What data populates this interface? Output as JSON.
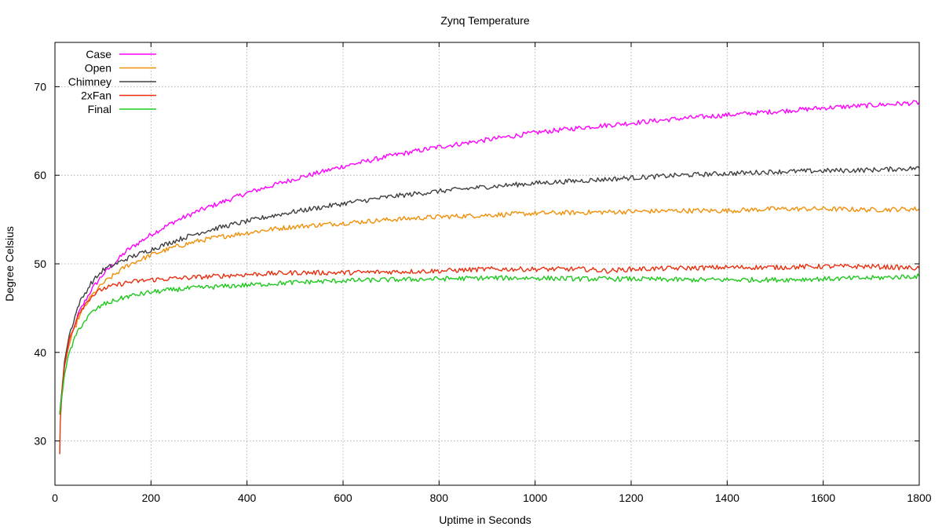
{
  "chart_data": {
    "type": "line",
    "title": "Zynq Temperature",
    "xlabel": "Uptime in Seconds",
    "ylabel": "Degree Celsius",
    "xlim": [
      0,
      1800
    ],
    "ylim": [
      25,
      75
    ],
    "xticks": [
      0,
      200,
      400,
      600,
      800,
      1000,
      1200,
      1400,
      1600,
      1800
    ],
    "yticks": [
      30,
      40,
      50,
      60,
      70
    ],
    "grid": true,
    "legend_position": "top-left",
    "series": [
      {
        "name": "Case",
        "color": "#ff00ff",
        "x": [
          10,
          20,
          30,
          50,
          75,
          100,
          150,
          200,
          250,
          300,
          350,
          400,
          450,
          500,
          600,
          700,
          800,
          900,
          1000,
          1100,
          1200,
          1300,
          1400,
          1500,
          1600,
          1700,
          1800
        ],
        "y": [
          33,
          38.5,
          41,
          44.5,
          47,
          48.8,
          51.5,
          53.3,
          54.8,
          56,
          57,
          58,
          58.8,
          59.6,
          61,
          62.2,
          63.2,
          64,
          64.8,
          65.4,
          65.9,
          66.4,
          66.8,
          67.2,
          67.6,
          67.9,
          68.2
        ]
      },
      {
        "name": "Open",
        "color": "#f0900a",
        "x": [
          10,
          20,
          30,
          50,
          75,
          100,
          150,
          200,
          250,
          300,
          350,
          400,
          450,
          500,
          600,
          700,
          800,
          900,
          1000,
          1100,
          1200,
          1300,
          1400,
          1500,
          1600,
          1700,
          1800
        ],
        "y": [
          33,
          38.5,
          41,
          44,
          46.3,
          47.8,
          49.8,
          51,
          51.9,
          52.6,
          53.1,
          53.5,
          53.9,
          54.2,
          54.6,
          55,
          55.3,
          55.5,
          55.7,
          55.8,
          55.9,
          56,
          56,
          56.2,
          56.2,
          56.1,
          56.2
        ]
      },
      {
        "name": "Chimney",
        "color": "#404040",
        "x": [
          10,
          20,
          30,
          50,
          75,
          100,
          150,
          200,
          250,
          300,
          350,
          400,
          450,
          500,
          600,
          700,
          800,
          900,
          1000,
          1100,
          1200,
          1300,
          1400,
          1500,
          1600,
          1700,
          1800
        ],
        "y": [
          33,
          39,
          42,
          45.5,
          47.8,
          49.3,
          50.6,
          51.6,
          52.6,
          53.5,
          54.2,
          54.8,
          55.4,
          55.9,
          56.8,
          57.6,
          58.2,
          58.7,
          59.1,
          59.4,
          59.7,
          60,
          60.2,
          60.4,
          60.5,
          60.6,
          60.8
        ]
      },
      {
        "name": "2xFan",
        "color": "#e83010",
        "x": [
          10,
          11,
          13,
          15,
          20,
          30,
          50,
          75,
          100,
          150,
          200,
          300,
          400,
          500,
          600,
          700,
          800,
          900,
          1000,
          1100,
          1150,
          1200,
          1300,
          1400,
          1500,
          1600,
          1700,
          1800
        ],
        "y": [
          28.5,
          32,
          34,
          36,
          38.5,
          41.5,
          44.5,
          46.3,
          47.2,
          47.9,
          48.2,
          48.5,
          48.8,
          49,
          49,
          49.1,
          49.2,
          49.4,
          49.4,
          49.4,
          49.2,
          49.4,
          49.5,
          49.6,
          49.6,
          49.7,
          49.7,
          49.5
        ]
      },
      {
        "name": "Final",
        "color": "#20c820",
        "x": [
          10,
          20,
          30,
          50,
          75,
          100,
          150,
          200,
          250,
          300,
          400,
          500,
          600,
          700,
          800,
          900,
          1000,
          1100,
          1200,
          1300,
          1400,
          1500,
          1600,
          1700,
          1800
        ],
        "y": [
          33,
          37.5,
          40,
          42.7,
          44.4,
          45.4,
          46.3,
          46.8,
          47.1,
          47.3,
          47.6,
          47.9,
          48.1,
          48.2,
          48.3,
          48.4,
          48.4,
          48.3,
          48.3,
          48.2,
          48.2,
          48.2,
          48.3,
          48.4,
          48.6
        ]
      }
    ]
  }
}
